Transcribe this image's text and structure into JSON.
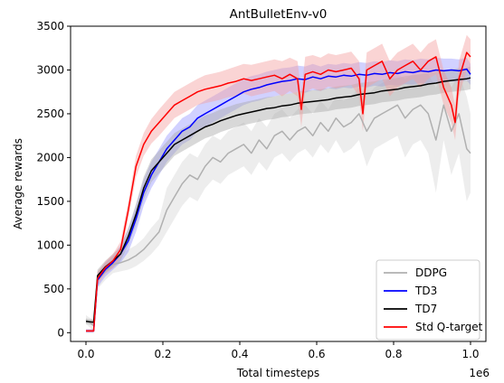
{
  "chart_data": {
    "type": "line",
    "title": "AntBulletEnv-v0",
    "xlabel": "Total timesteps",
    "ylabel": "Average rewards",
    "x_offset_label": "1e6",
    "xlim": [
      -0.04,
      1.04
    ],
    "ylim": [
      -100,
      3500
    ],
    "xticks": [
      0.0,
      0.2,
      0.4,
      0.6,
      0.8,
      1.0
    ],
    "xtick_labels": [
      "0.0",
      "0.2",
      "0.4",
      "0.6",
      "0.8",
      "1.0"
    ],
    "yticks": [
      0,
      500,
      1000,
      1500,
      2000,
      2500,
      3000,
      3500
    ],
    "ytick_labels": [
      "0",
      "500",
      "1000",
      "1500",
      "2000",
      "2500",
      "3000",
      "3500"
    ],
    "grid": false,
    "legend_position": "lower-right",
    "series": [
      {
        "name": "DDPG",
        "color": "#b0b0b0",
        "band_color": "#d8d8d8",
        "x": [
          0.0,
          0.02,
          0.03,
          0.05,
          0.07,
          0.09,
          0.11,
          0.13,
          0.15,
          0.17,
          0.19,
          0.21,
          0.23,
          0.25,
          0.27,
          0.29,
          0.31,
          0.33,
          0.35,
          0.37,
          0.39,
          0.41,
          0.43,
          0.45,
          0.47,
          0.49,
          0.51,
          0.53,
          0.55,
          0.57,
          0.59,
          0.61,
          0.63,
          0.65,
          0.67,
          0.69,
          0.71,
          0.73,
          0.75,
          0.77,
          0.79,
          0.81,
          0.83,
          0.85,
          0.87,
          0.89,
          0.91,
          0.93,
          0.95,
          0.97,
          0.99,
          1.0
        ],
        "values": [
          150,
          80,
          600,
          700,
          780,
          800,
          830,
          880,
          950,
          1050,
          1150,
          1400,
          1550,
          1700,
          1800,
          1750,
          1900,
          2000,
          1950,
          2050,
          2100,
          2150,
          2050,
          2200,
          2100,
          2250,
          2300,
          2200,
          2300,
          2350,
          2250,
          2400,
          2300,
          2450,
          2350,
          2400,
          2500,
          2300,
          2450,
          2500,
          2550,
          2600,
          2450,
          2550,
          2600,
          2500,
          2200,
          2600,
          2300,
          2500,
          2100,
          2050
        ],
        "lower": [
          100,
          20,
          500,
          600,
          680,
          700,
          720,
          760,
          820,
          900,
          1000,
          1150,
          1300,
          1450,
          1550,
          1500,
          1650,
          1750,
          1700,
          1800,
          1850,
          1900,
          1800,
          1950,
          1850,
          2000,
          2050,
          1950,
          2050,
          2100,
          2000,
          2150,
          2050,
          2200,
          2050,
          2100,
          2200,
          1900,
          2100,
          2150,
          2200,
          2250,
          2000,
          2150,
          2200,
          2050,
          1600,
          2200,
          1800,
          2050,
          1500,
          1600
        ],
        "upper": [
          200,
          140,
          700,
          800,
          880,
          900,
          950,
          1000,
          1080,
          1200,
          1300,
          1650,
          1800,
          1950,
          2050,
          2000,
          2150,
          2250,
          2200,
          2300,
          2350,
          2400,
          2300,
          2450,
          2350,
          2500,
          2550,
          2450,
          2550,
          2600,
          2500,
          2650,
          2550,
          2700,
          2650,
          2700,
          2800,
          2700,
          2800,
          2850,
          2900,
          2950,
          2900,
          2950,
          3000,
          2950,
          2800,
          3000,
          2800,
          2950,
          2700,
          2500
        ]
      },
      {
        "name": "TD3",
        "color": "#0000ff",
        "band_color": "#9999ff",
        "x": [
          0.0,
          0.02,
          0.03,
          0.05,
          0.07,
          0.09,
          0.11,
          0.13,
          0.15,
          0.17,
          0.19,
          0.21,
          0.23,
          0.25,
          0.27,
          0.29,
          0.31,
          0.33,
          0.35,
          0.37,
          0.39,
          0.41,
          0.43,
          0.45,
          0.47,
          0.49,
          0.51,
          0.53,
          0.55,
          0.57,
          0.59,
          0.61,
          0.63,
          0.65,
          0.67,
          0.69,
          0.71,
          0.73,
          0.75,
          0.77,
          0.79,
          0.81,
          0.83,
          0.85,
          0.87,
          0.89,
          0.91,
          0.93,
          0.95,
          0.97,
          0.99,
          1.0
        ],
        "values": [
          20,
          20,
          600,
          720,
          800,
          900,
          1050,
          1300,
          1600,
          1800,
          1950,
          2100,
          2200,
          2300,
          2350,
          2450,
          2500,
          2550,
          2600,
          2650,
          2700,
          2750,
          2780,
          2800,
          2830,
          2850,
          2870,
          2880,
          2900,
          2890,
          2920,
          2900,
          2930,
          2920,
          2940,
          2930,
          2950,
          2940,
          2960,
          2950,
          2970,
          2960,
          2980,
          2970,
          2990,
          2980,
          3000,
          2990,
          3000,
          2990,
          3010,
          2950
        ],
        "lower": [
          0,
          0,
          520,
          640,
          720,
          800,
          920,
          1150,
          1450,
          1650,
          1800,
          1950,
          2050,
          2150,
          2200,
          2300,
          2350,
          2400,
          2450,
          2500,
          2550,
          2600,
          2630,
          2650,
          2680,
          2700,
          2720,
          2730,
          2750,
          2740,
          2770,
          2760,
          2790,
          2780,
          2800,
          2790,
          2810,
          2800,
          2820,
          2810,
          2830,
          2820,
          2840,
          2830,
          2850,
          2840,
          2860,
          2850,
          2870,
          2860,
          2880,
          2830
        ],
        "upper": [
          40,
          40,
          680,
          800,
          880,
          1000,
          1180,
          1450,
          1750,
          1950,
          2100,
          2250,
          2350,
          2450,
          2500,
          2600,
          2650,
          2700,
          2750,
          2800,
          2850,
          2900,
          2930,
          2950,
          2980,
          3000,
          3020,
          3030,
          3050,
          3040,
          3070,
          3040,
          3070,
          3060,
          3080,
          3070,
          3090,
          3080,
          3100,
          3090,
          3110,
          3100,
          3120,
          3110,
          3130,
          3120,
          3140,
          3130,
          3130,
          3120,
          3140,
          3070
        ]
      },
      {
        "name": "TD7",
        "color": "#000000",
        "band_color": "#a8a8a8",
        "x": [
          0.0,
          0.02,
          0.03,
          0.05,
          0.07,
          0.09,
          0.11,
          0.13,
          0.15,
          0.17,
          0.19,
          0.21,
          0.23,
          0.25,
          0.27,
          0.29,
          0.31,
          0.33,
          0.35,
          0.37,
          0.39,
          0.41,
          0.43,
          0.45,
          0.47,
          0.49,
          0.51,
          0.53,
          0.55,
          0.57,
          0.59,
          0.61,
          0.63,
          0.65,
          0.67,
          0.69,
          0.71,
          0.73,
          0.75,
          0.77,
          0.79,
          0.81,
          0.83,
          0.85,
          0.87,
          0.89,
          0.91,
          0.93,
          0.95,
          0.97,
          0.99,
          1.0
        ],
        "values": [
          130,
          120,
          650,
          750,
          820,
          900,
          1100,
          1350,
          1650,
          1850,
          1950,
          2050,
          2150,
          2200,
          2250,
          2300,
          2350,
          2380,
          2420,
          2450,
          2480,
          2500,
          2520,
          2540,
          2560,
          2570,
          2590,
          2600,
          2620,
          2630,
          2640,
          2650,
          2660,
          2680,
          2690,
          2700,
          2720,
          2730,
          2740,
          2760,
          2770,
          2780,
          2800,
          2810,
          2820,
          2840,
          2850,
          2870,
          2880,
          2890,
          2900,
          2910
        ],
        "lower": [
          100,
          90,
          580,
          680,
          740,
          820,
          1000,
          1230,
          1520,
          1720,
          1820,
          1920,
          2020,
          2070,
          2120,
          2170,
          2220,
          2250,
          2290,
          2320,
          2350,
          2370,
          2390,
          2410,
          2430,
          2440,
          2460,
          2470,
          2490,
          2500,
          2510,
          2520,
          2530,
          2550,
          2560,
          2570,
          2590,
          2600,
          2610,
          2630,
          2640,
          2650,
          2670,
          2680,
          2690,
          2710,
          2720,
          2740,
          2750,
          2760,
          2770,
          2780
        ],
        "upper": [
          160,
          150,
          720,
          820,
          900,
          980,
          1200,
          1470,
          1780,
          1980,
          2080,
          2180,
          2280,
          2330,
          2380,
          2430,
          2480,
          2510,
          2550,
          2580,
          2610,
          2630,
          2650,
          2670,
          2690,
          2700,
          2720,
          2730,
          2750,
          2760,
          2770,
          2780,
          2790,
          2810,
          2820,
          2830,
          2850,
          2860,
          2870,
          2890,
          2900,
          2910,
          2930,
          2940,
          2950,
          2970,
          2980,
          3000,
          3010,
          3020,
          3030,
          3040
        ]
      },
      {
        "name": "Std Q-target",
        "color": "#ff0000",
        "band_color": "#f4a0a0",
        "x": [
          0.0,
          0.02,
          0.03,
          0.05,
          0.07,
          0.09,
          0.11,
          0.13,
          0.15,
          0.17,
          0.19,
          0.21,
          0.23,
          0.25,
          0.27,
          0.29,
          0.31,
          0.33,
          0.35,
          0.37,
          0.39,
          0.41,
          0.43,
          0.45,
          0.47,
          0.49,
          0.51,
          0.53,
          0.55,
          0.56,
          0.57,
          0.59,
          0.61,
          0.63,
          0.65,
          0.67,
          0.69,
          0.71,
          0.72,
          0.73,
          0.75,
          0.77,
          0.79,
          0.81,
          0.83,
          0.85,
          0.87,
          0.89,
          0.91,
          0.93,
          0.95,
          0.96,
          0.97,
          0.99,
          1.0
        ],
        "values": [
          20,
          20,
          620,
          740,
          820,
          950,
          1400,
          1900,
          2150,
          2300,
          2400,
          2500,
          2600,
          2650,
          2700,
          2750,
          2780,
          2800,
          2820,
          2850,
          2870,
          2900,
          2880,
          2900,
          2920,
          2940,
          2900,
          2950,
          2900,
          2550,
          2950,
          2980,
          2950,
          3000,
          2980,
          3000,
          3020,
          2900,
          2500,
          3000,
          3050,
          3100,
          2900,
          3000,
          3050,
          3100,
          3000,
          3100,
          3150,
          2800,
          2600,
          2400,
          2900,
          3200,
          3150
        ],
        "lower": [
          0,
          0,
          550,
          670,
          740,
          860,
          1300,
          1780,
          2020,
          2160,
          2250,
          2350,
          2450,
          2500,
          2550,
          2600,
          2620,
          2640,
          2660,
          2690,
          2700,
          2730,
          2700,
          2720,
          2740,
          2760,
          2700,
          2760,
          2700,
          2350,
          2750,
          2790,
          2760,
          2810,
          2790,
          2810,
          2830,
          2700,
          2300,
          2800,
          2850,
          2900,
          2700,
          2800,
          2850,
          2900,
          2800,
          2900,
          2950,
          2600,
          2400,
          2200,
          2700,
          3000,
          2950
        ],
        "upper": [
          40,
          40,
          690,
          810,
          900,
          1040,
          1500,
          2020,
          2280,
          2440,
          2550,
          2650,
          2750,
          2800,
          2850,
          2900,
          2940,
          2960,
          2980,
          3010,
          3040,
          3070,
          3060,
          3080,
          3100,
          3120,
          3100,
          3140,
          3100,
          2750,
          3150,
          3170,
          3140,
          3190,
          3170,
          3190,
          3210,
          3100,
          2700,
          3200,
          3250,
          3300,
          3100,
          3200,
          3250,
          3300,
          3200,
          3300,
          3350,
          3000,
          2800,
          2600,
          3100,
          3400,
          3350
        ]
      }
    ]
  }
}
